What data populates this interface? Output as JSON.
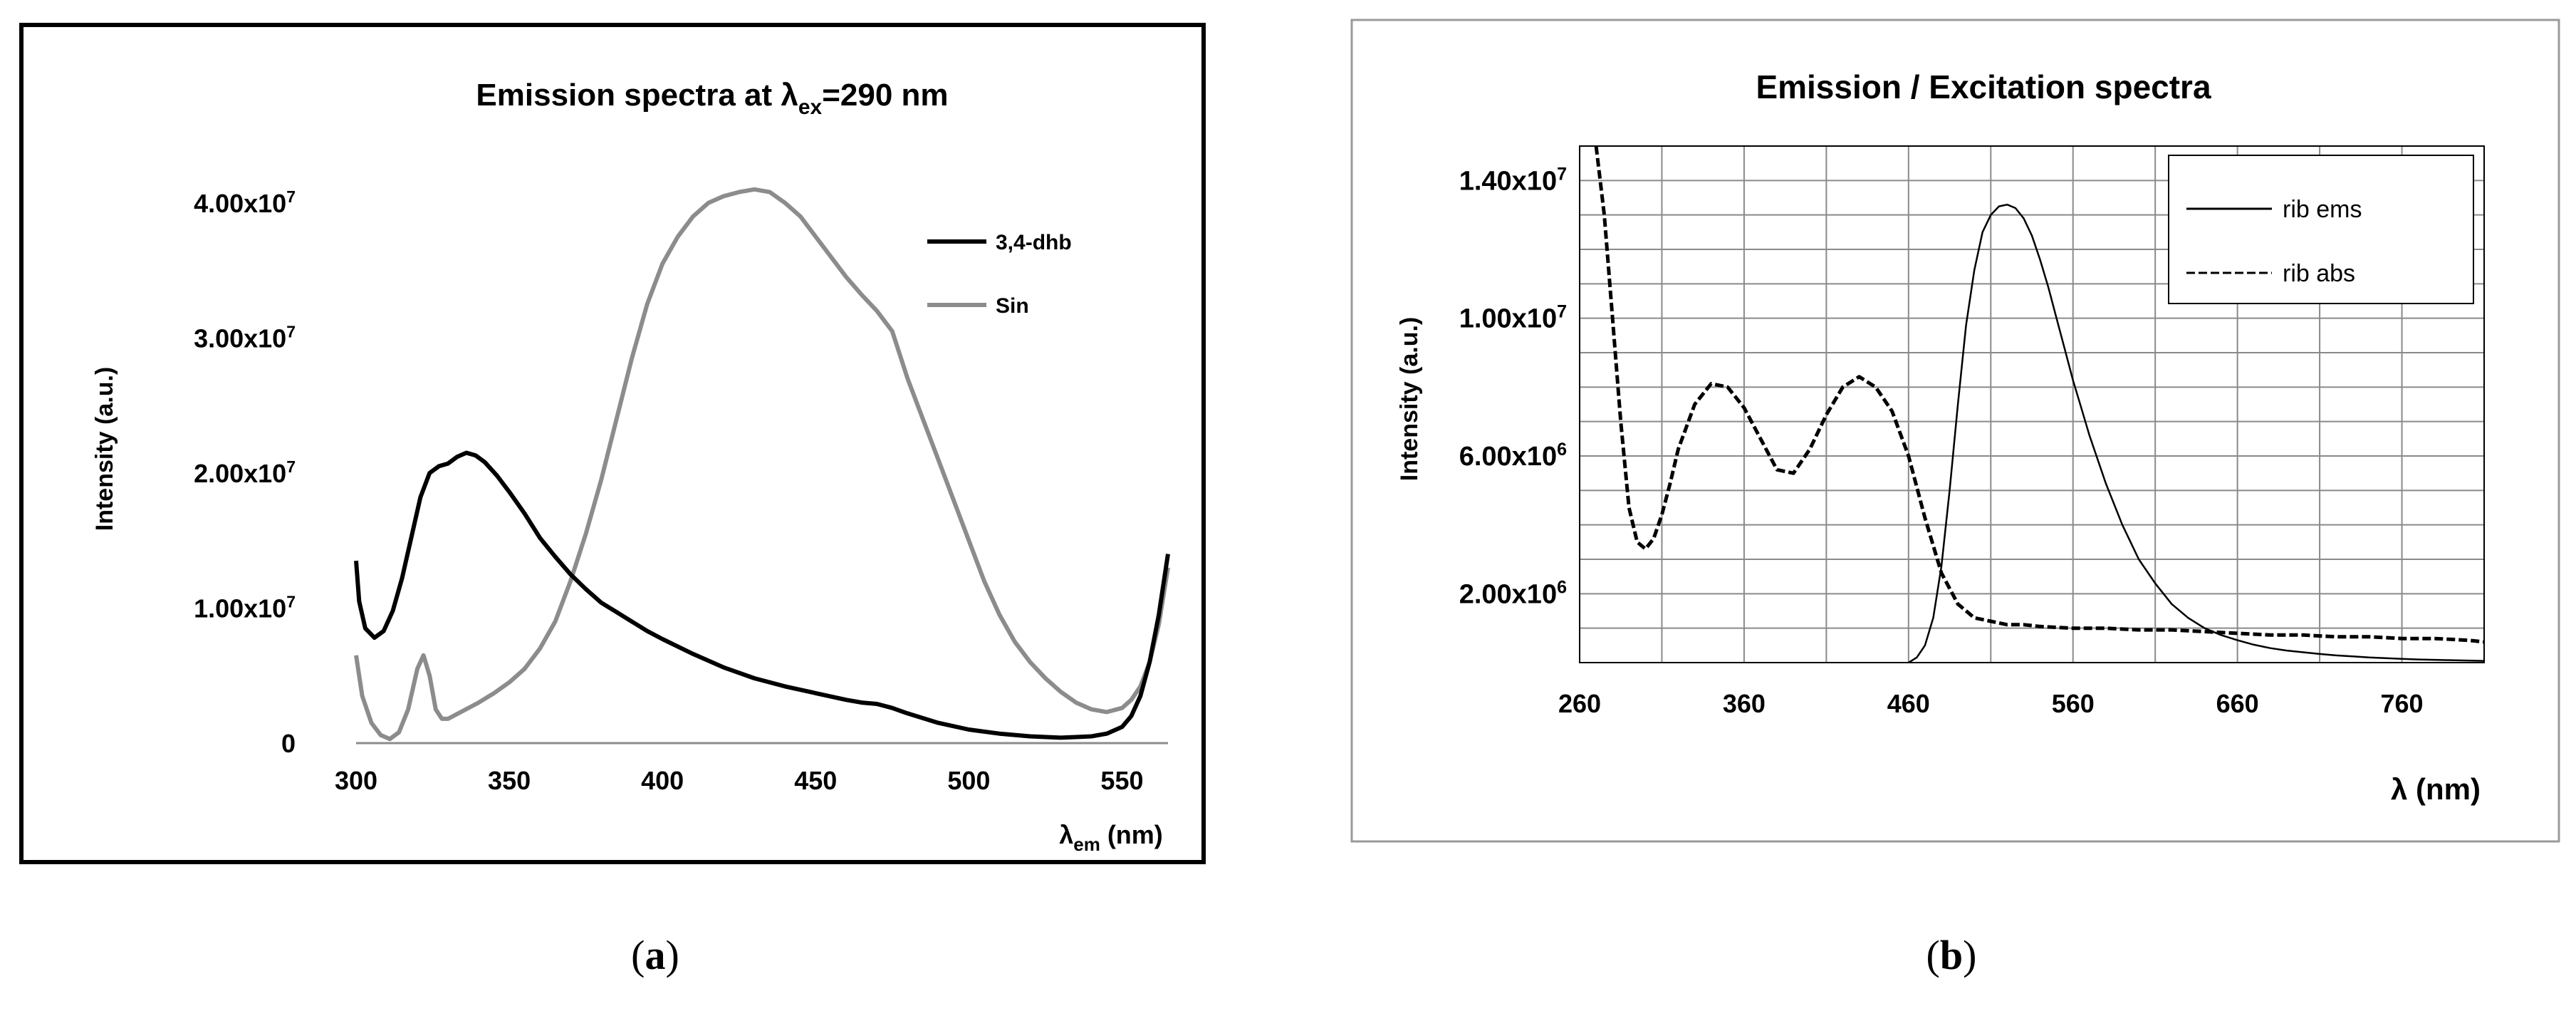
{
  "figure": {
    "panel_labels": [
      "a",
      "b"
    ]
  },
  "chart_data": [
    {
      "type": "line",
      "title": {
        "main": "Emission spectra at λ",
        "sub": "ex",
        "tail": "=290 nm"
      },
      "xlabel": {
        "main": "λ",
        "sub": "em",
        "tail": " (nm)"
      },
      "ylabel": "Intensity (a.u.)",
      "xlim": [
        300,
        565
      ],
      "ylim": [
        0,
        45000000
      ],
      "x_ticks": [
        300,
        350,
        400,
        450,
        500,
        550
      ],
      "y_ticks": [
        {
          "value": 0,
          "mant": "0",
          "exp": ""
        },
        {
          "value": 10000000,
          "mant": "1.00x10",
          "exp": "7"
        },
        {
          "value": 20000000,
          "mant": "2.00x10",
          "exp": "7"
        },
        {
          "value": 30000000,
          "mant": "3.00x10",
          "exp": "7"
        },
        {
          "value": 40000000,
          "mant": "4.00x10",
          "exp": "7"
        }
      ],
      "grid": false,
      "legend_position": "top-right",
      "colors": {
        "3,4-dhb": "#000000",
        "Sin": "#8c8c8c"
      },
      "series": [
        {
          "name": "3,4-dhb",
          "x": [
            300,
            301,
            303,
            306,
            309,
            312,
            315,
            318,
            321,
            324,
            327,
            330,
            333,
            336,
            339,
            342,
            346,
            350,
            355,
            360,
            365,
            370,
            375,
            380,
            385,
            390,
            395,
            400,
            410,
            420,
            430,
            440,
            450,
            460,
            465,
            470,
            475,
            480,
            490,
            500,
            510,
            520,
            530,
            540,
            545,
            550,
            553,
            556,
            559,
            562,
            565
          ],
          "y": [
            13500000,
            10500000,
            8500000,
            7800000,
            8300000,
            9800000,
            12200000,
            15200000,
            18200000,
            20000000,
            20500000,
            20700000,
            21200000,
            21500000,
            21300000,
            20800000,
            19800000,
            18600000,
            17000000,
            15200000,
            13800000,
            12500000,
            11400000,
            10400000,
            9700000,
            9000000,
            8300000,
            7700000,
            6600000,
            5600000,
            4800000,
            4200000,
            3700000,
            3200000,
            3000000,
            2900000,
            2600000,
            2200000,
            1500000,
            1000000,
            700000,
            500000,
            400000,
            500000,
            700000,
            1200000,
            2000000,
            3500000,
            6000000,
            9500000,
            14000000
          ]
        },
        {
          "name": "Sin",
          "x": [
            300,
            302,
            305,
            308,
            311,
            314,
            317,
            320,
            322,
            324,
            326,
            328,
            330,
            335,
            340,
            345,
            350,
            355,
            360,
            365,
            370,
            375,
            380,
            385,
            390,
            395,
            400,
            405,
            410,
            415,
            420,
            425,
            430,
            435,
            440,
            445,
            450,
            455,
            460,
            465,
            470,
            475,
            480,
            485,
            490,
            495,
            500,
            505,
            510,
            515,
            520,
            525,
            530,
            535,
            540,
            545,
            550,
            553,
            556,
            559,
            562,
            565
          ],
          "y": [
            6500000,
            3500000,
            1500000,
            600000,
            300000,
            800000,
            2500000,
            5500000,
            6500000,
            5000000,
            2500000,
            1800000,
            1800000,
            2400000,
            3000000,
            3700000,
            4500000,
            5500000,
            7000000,
            9000000,
            12000000,
            15500000,
            19500000,
            24000000,
            28500000,
            32500000,
            35500000,
            37500000,
            39000000,
            40000000,
            40500000,
            40800000,
            41000000,
            40800000,
            40000000,
            39000000,
            37500000,
            36000000,
            34500000,
            33200000,
            32000000,
            30500000,
            27000000,
            24000000,
            21000000,
            18000000,
            15000000,
            12000000,
            9500000,
            7500000,
            6000000,
            4800000,
            3800000,
            3000000,
            2500000,
            2300000,
            2600000,
            3200000,
            4200000,
            6000000,
            8800000,
            13000000
          ]
        }
      ]
    },
    {
      "type": "line",
      "title": "Emission / Excitation spectra",
      "xlabel": "λ (nm)",
      "ylabel": "Intensity (a.u.)",
      "xlim": [
        260,
        810
      ],
      "ylim": [
        0,
        15000000
      ],
      "x_ticks": [
        260,
        360,
        460,
        560,
        660,
        760
      ],
      "y_ticks": [
        {
          "value": 2000000,
          "mant": "2.00x10",
          "exp": "6"
        },
        {
          "value": 6000000,
          "mant": "6.00x10",
          "exp": "6"
        },
        {
          "value": 10000000,
          "mant": "1.00x10",
          "exp": "7"
        },
        {
          "value": 14000000,
          "mant": "1.40x10",
          "exp": "7"
        }
      ],
      "grid": true,
      "legend_position": "top-right",
      "colors": {
        "rib ems": "#000000",
        "rib abs": "#000000"
      },
      "series": [
        {
          "name": "rib ems",
          "style": "solid",
          "x": [
            460,
            465,
            470,
            475,
            480,
            485,
            490,
            495,
            500,
            505,
            510,
            515,
            520,
            525,
            530,
            535,
            540,
            545,
            550,
            555,
            560,
            565,
            570,
            580,
            590,
            600,
            610,
            620,
            630,
            640,
            650,
            660,
            670,
            680,
            690,
            700,
            710,
            720,
            730,
            740,
            750,
            760,
            770,
            780,
            790,
            800,
            810
          ],
          "y": [
            0,
            150000,
            500000,
            1300000,
            2800000,
            5000000,
            7500000,
            9800000,
            11400000,
            12500000,
            13000000,
            13250000,
            13300000,
            13200000,
            12900000,
            12400000,
            11700000,
            10900000,
            10000000,
            9100000,
            8200000,
            7400000,
            6600000,
            5200000,
            4000000,
            3000000,
            2300000,
            1700000,
            1300000,
            1000000,
            800000,
            650000,
            520000,
            420000,
            350000,
            300000,
            250000,
            210000,
            180000,
            150000,
            130000,
            110000,
            90000,
            80000,
            70000,
            60000,
            50000
          ]
        },
        {
          "name": "rib abs",
          "style": "dashed",
          "x": [
            270,
            275,
            280,
            285,
            290,
            295,
            300,
            305,
            310,
            315,
            320,
            330,
            340,
            350,
            360,
            370,
            380,
            390,
            400,
            410,
            420,
            430,
            440,
            450,
            460,
            470,
            480,
            490,
            500,
            510,
            520,
            530,
            540,
            560,
            580,
            600,
            620,
            640,
            660,
            680,
            700,
            720,
            740,
            760,
            780,
            800,
            810
          ],
          "y": [
            15000000,
            13000000,
            10000000,
            7000000,
            4500000,
            3500000,
            3300000,
            3600000,
            4300000,
            5200000,
            6200000,
            7500000,
            8100000,
            8000000,
            7400000,
            6500000,
            5600000,
            5500000,
            6200000,
            7200000,
            8000000,
            8300000,
            8000000,
            7300000,
            6000000,
            4200000,
            2600000,
            1700000,
            1300000,
            1200000,
            1100000,
            1100000,
            1050000,
            1000000,
            1000000,
            950000,
            950000,
            900000,
            850000,
            800000,
            800000,
            750000,
            750000,
            700000,
            700000,
            650000,
            600000
          ]
        }
      ]
    }
  ]
}
